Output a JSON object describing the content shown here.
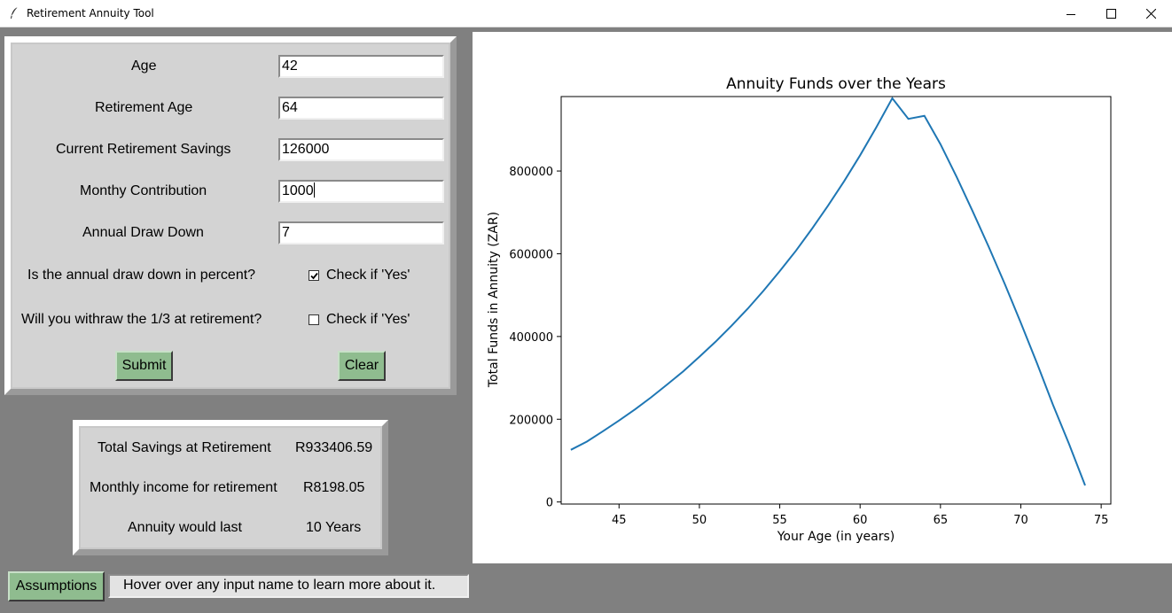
{
  "window": {
    "title": "Retirement Annuity Tool"
  },
  "form": {
    "age_label": "Age",
    "age_value": "42",
    "retirement_age_label": "Retirement Age",
    "retirement_age_value": "64",
    "savings_label": "Current Retirement Savings",
    "savings_value": "126000",
    "contribution_label": "Monthy Contribution",
    "contribution_value": "1000",
    "drawdown_label": "Annual Draw Down",
    "drawdown_value": "7",
    "percent_question": "Is the annual draw down in percent?",
    "percent_check_label": "Check if 'Yes'",
    "percent_checked": true,
    "withdraw_question": "Will you withraw the 1/3 at retirement?",
    "withdraw_check_label": "Check if 'Yes'",
    "withdraw_checked": false,
    "submit_label": "Submit",
    "clear_label": "Clear"
  },
  "results": {
    "total_label": "Total Savings at Retirement",
    "total_value": "R933406.59",
    "monthly_label": "Monthly income for retirement",
    "monthly_value": "R8198.05",
    "last_label": "Annuity would last",
    "last_value": "10 Years"
  },
  "footer": {
    "assumptions_label": "Assumptions",
    "status_text": "Hover over any input name to learn more about it."
  },
  "colors": {
    "button_green": "#8fbc8f",
    "line": "#1f77b4",
    "panel": "#d3d3d3",
    "background": "#808080"
  },
  "chart_data": {
    "type": "line",
    "title": "Annuity Funds over the Years",
    "xlabel": "Your Age (in years)",
    "ylabel": "Total Funds in Annuity (ZAR)",
    "xlim": [
      41.4,
      75.6
    ],
    "ylim": [
      -5000,
      980000
    ],
    "xticks": [
      45,
      50,
      55,
      60,
      65,
      70,
      75
    ],
    "yticks": [
      0,
      200000,
      400000,
      600000,
      800000
    ],
    "grid": false,
    "series": [
      {
        "x": [
          42,
          43,
          44,
          45,
          46,
          47,
          48,
          49,
          50,
          51,
          52,
          53,
          54,
          55,
          56,
          57,
          58,
          59,
          60,
          61,
          62,
          63,
          64,
          65,
          66,
          67,
          68,
          69,
          70,
          71,
          72,
          73,
          74
        ],
        "y": [
          126000,
          146000,
          171000,
          197000,
          224000,
          253000,
          284000,
          316000,
          351000,
          387000,
          426000,
          467000,
          511000,
          558000,
          607000,
          660000,
          716000,
          775000,
          838000,
          905000,
          976000,
          926000,
          933407,
          865000,
          786000,
          703000,
          617000,
          527000,
          433000,
          336000,
          235000,
          140000,
          40000
        ]
      }
    ]
  }
}
